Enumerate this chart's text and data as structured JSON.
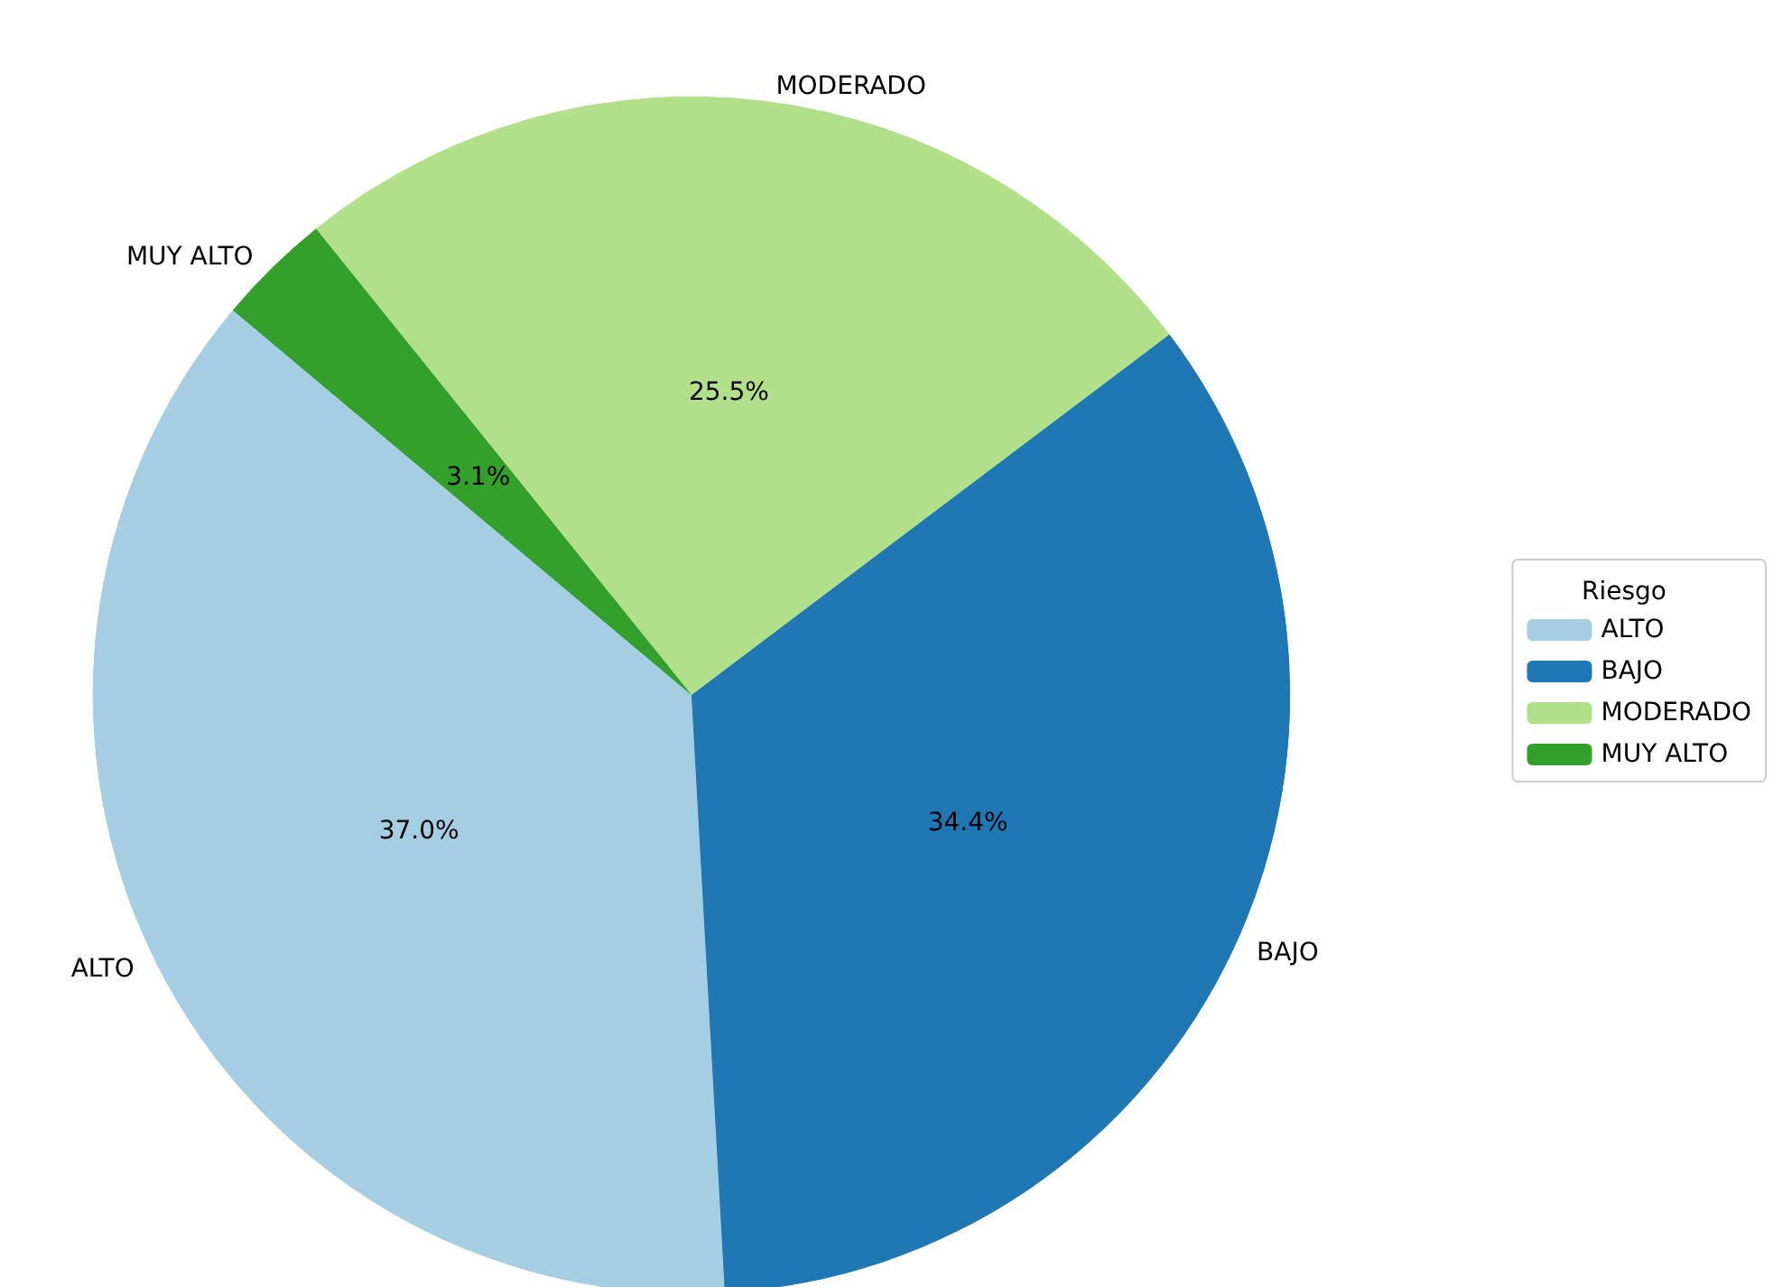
{
  "chart_data": {
    "type": "pie",
    "legend_title": "Riesgo",
    "legend": "right",
    "categories": [
      "ALTO",
      "BAJO",
      "MODERADO",
      "MUY ALTO"
    ],
    "values": [
      37.0,
      34.4,
      25.5,
      3.1
    ],
    "value_labels": [
      "37.0%",
      "34.4%",
      "25.5%",
      "3.1%"
    ],
    "colors": [
      "#a6cee3",
      "#1f78b4",
      "#b2df8a",
      "#33a02c"
    ]
  }
}
